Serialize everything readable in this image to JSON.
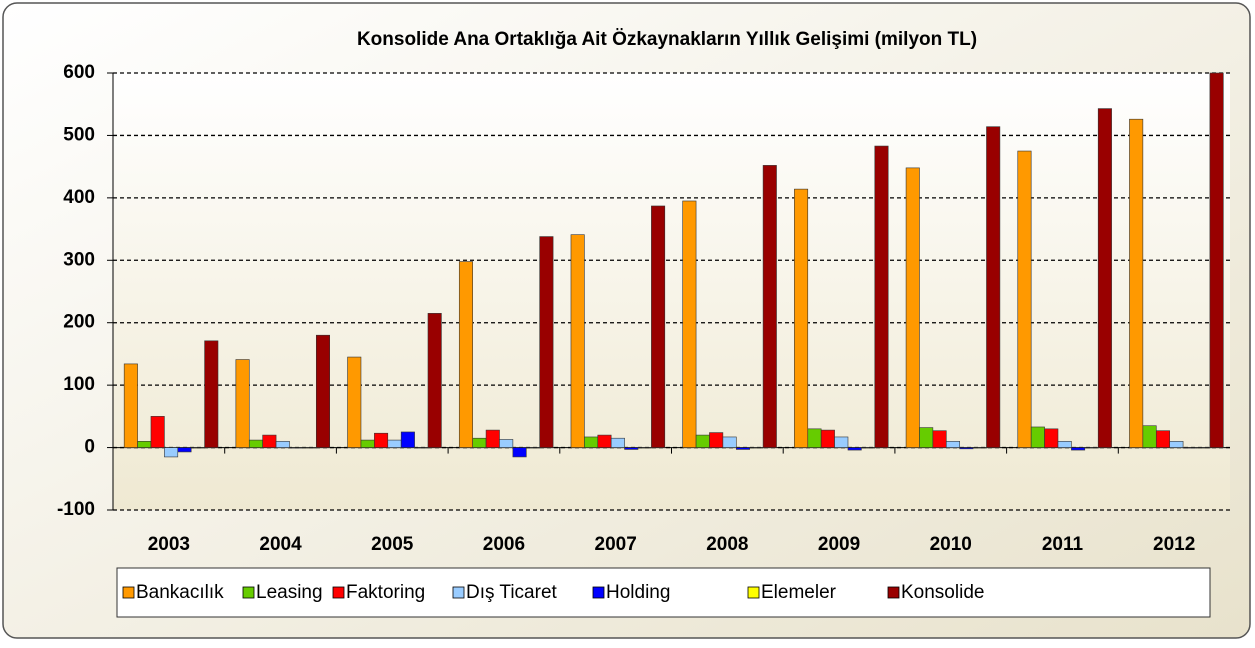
{
  "chart_data": {
    "type": "bar",
    "title": "Konsolide Ana Ortaklığa Ait Özkaynakların Yıllık Gelişimi (milyon TL)",
    "categories": [
      "2003",
      "2004",
      "2005",
      "2006",
      "2007",
      "2008",
      "2009",
      "2010",
      "2011",
      "2012"
    ],
    "series": [
      {
        "name": "Bankacılık",
        "color": "#ff9900",
        "values": [
          134,
          141,
          145,
          298,
          341,
          395,
          414,
          448,
          475,
          526
        ]
      },
      {
        "name": "Leasing",
        "color": "#66cc00",
        "values": [
          10,
          12,
          12,
          15,
          17,
          20,
          30,
          32,
          33,
          35
        ]
      },
      {
        "name": "Faktoring",
        "color": "#ff0000",
        "values": [
          50,
          20,
          23,
          28,
          20,
          24,
          28,
          27,
          30,
          27
        ]
      },
      {
        "name": "Dış Ticaret",
        "color": "#99ccff",
        "values": [
          -15,
          10,
          12,
          13,
          15,
          17,
          17,
          10,
          10,
          10
        ]
      },
      {
        "name": "Holding",
        "color": "#0000ff",
        "values": [
          -7,
          0,
          25,
          -15,
          -3,
          -3,
          -4,
          -2,
          -4,
          0
        ]
      },
      {
        "name": "Elemeler",
        "color": "#ffff00",
        "values": [
          0,
          0,
          0,
          0,
          0,
          0,
          0,
          0,
          0,
          0
        ]
      },
      {
        "name": "Konsolide",
        "color": "#990000",
        "values": [
          171,
          180,
          215,
          338,
          387,
          452,
          483,
          514,
          543,
          600
        ]
      }
    ],
    "ylim": [
      -100,
      600
    ],
    "yticks": [
      -100,
      0,
      100,
      200,
      300,
      400,
      500,
      600
    ],
    "grid": true,
    "legend": "bottom"
  }
}
